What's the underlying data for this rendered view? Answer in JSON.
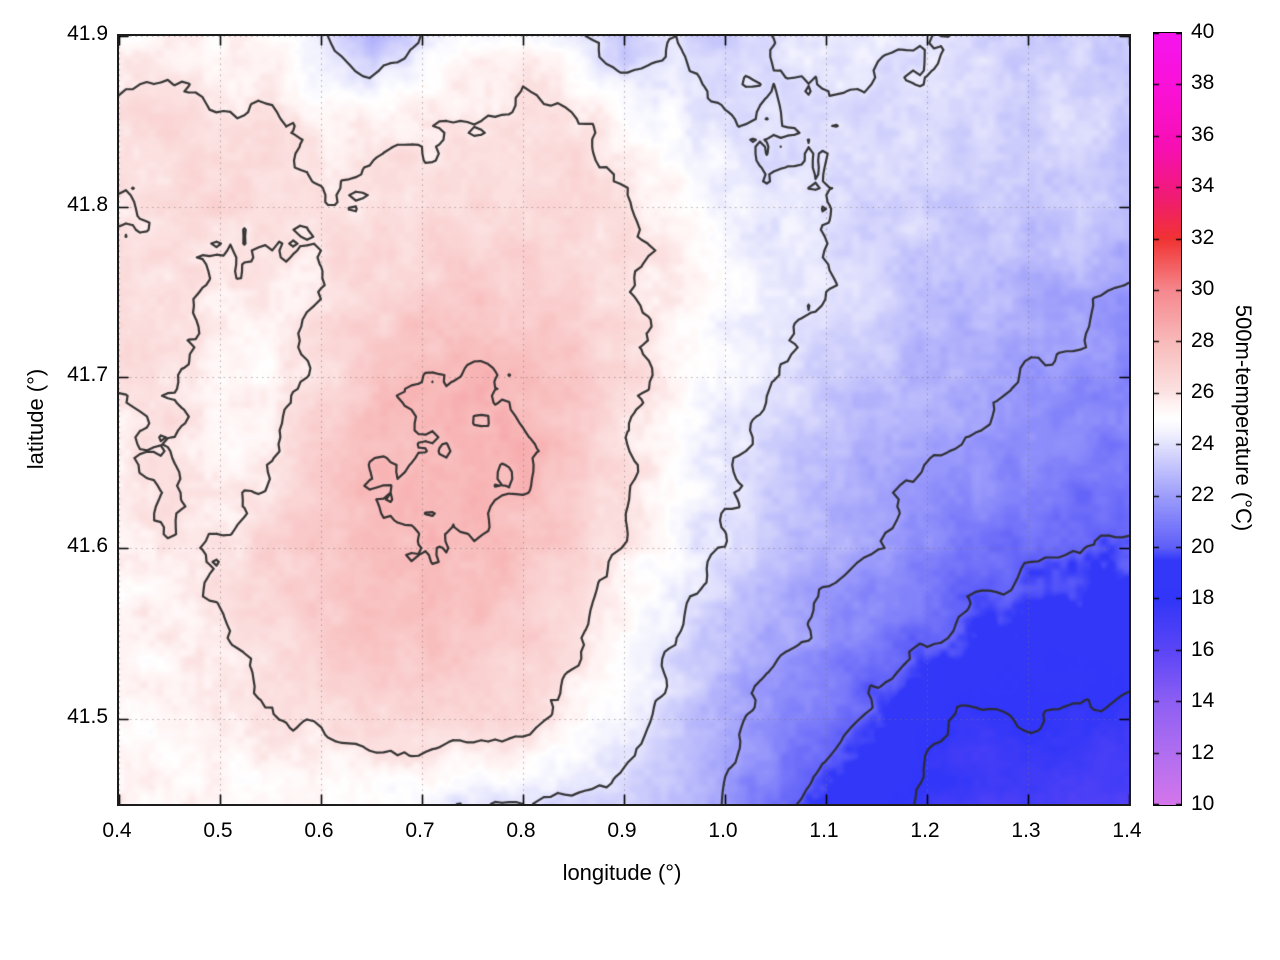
{
  "chart_data": {
    "type": "heatmap",
    "title": "",
    "xlabel": "longitude (°)",
    "ylabel": "latitude (°)",
    "colorbar_label": "500m-temperature (°C)",
    "x_range": [
      0.4,
      1.4
    ],
    "y_range": [
      41.45,
      41.9
    ],
    "grid_on": true,
    "legend": "colorbar-right",
    "x_ticks": {
      "values": [
        0.4,
        0.5,
        0.6,
        0.7,
        0.8,
        0.9,
        1.0,
        1.1,
        1.2,
        1.3,
        1.4
      ],
      "labels": [
        "0.4",
        "0.5",
        "0.6",
        "0.7",
        "0.8",
        "0.9",
        "1.0",
        "1.1",
        "1.2",
        "1.3",
        "1.4"
      ]
    },
    "y_ticks": {
      "values": [
        41.5,
        41.6,
        41.7,
        41.8,
        41.9
      ],
      "labels": [
        "41.5",
        "41.6",
        "41.7",
        "41.8",
        "41.9"
      ]
    },
    "colorbar_range": [
      10,
      40
    ],
    "cb_ticks": {
      "values": [
        10,
        12,
        14,
        16,
        18,
        20,
        22,
        24,
        26,
        28,
        30,
        32,
        34,
        36,
        38,
        40
      ],
      "labels": [
        "10",
        "12",
        "14",
        "16",
        "18",
        "20",
        "22",
        "24",
        "26",
        "28",
        "30",
        "32",
        "34",
        "36",
        "38",
        "40"
      ]
    },
    "contour_levels": [
      18,
      20,
      22,
      24,
      26,
      28
    ],
    "contour_color": "#2b2b2b",
    "grid_line_color": "rgba(130,115,115,0.55)",
    "palette": [
      {
        "v": 10,
        "color": "#d376ea"
      },
      {
        "v": 12,
        "color": "#b16ef0"
      },
      {
        "v": 14,
        "color": "#8d5ff3"
      },
      {
        "v": 16,
        "color": "#5b45f6"
      },
      {
        "v": 18,
        "color": "#3136f8"
      },
      {
        "v": 19.5,
        "color": "#3338f8"
      },
      {
        "v": 20,
        "color": "#5f5ff9"
      },
      {
        "v": 22,
        "color": "#9d9dfb"
      },
      {
        "v": 23.2,
        "color": "#c6c6fc"
      },
      {
        "v": 24.5,
        "color": "#f3f3fe"
      },
      {
        "v": 25.0,
        "color": "#ffffff"
      },
      {
        "v": 25.6,
        "color": "#fff2f2"
      },
      {
        "v": 26,
        "color": "#fce3e3"
      },
      {
        "v": 28,
        "color": "#f8baba"
      },
      {
        "v": 30,
        "color": "#f5888e"
      },
      {
        "v": 32,
        "color": "#f13333"
      },
      {
        "v": 33.6,
        "color": "#f01c72"
      },
      {
        "v": 35.5,
        "color": "#f70fb2"
      },
      {
        "v": 38,
        "color": "#fa11d9"
      },
      {
        "v": 40,
        "color": "#f515ee"
      }
    ],
    "grid": {
      "lon": [
        0.4,
        0.45,
        0.5,
        0.55,
        0.6,
        0.65,
        0.7,
        0.75,
        0.8,
        0.85,
        0.9,
        0.95,
        1.0,
        1.05,
        1.1,
        1.15,
        1.2,
        1.25,
        1.3,
        1.35,
        1.4
      ],
      "lat_top_to_bottom": [
        41.9,
        41.85,
        41.8,
        41.75,
        41.7,
        41.65,
        41.6,
        41.55,
        41.5,
        41.45
      ],
      "values_c": [
        [
          25.3,
          25.5,
          25.4,
          25.2,
          24.2,
          22.4,
          24.0,
          25.0,
          25.2,
          24.4,
          23.0,
          23.9,
          23.4,
          24.2,
          24.3,
          24.2,
          24.0,
          23.8,
          23.4,
          23.6,
          23.2
        ],
        [
          26.3,
          26.4,
          26.2,
          26.1,
          25.4,
          25.6,
          26.0,
          26.1,
          26.2,
          26.3,
          25.2,
          24.6,
          24.2,
          24.0,
          23.9,
          23.8,
          23.7,
          23.6,
          23.5,
          23.7,
          23.2
        ],
        [
          25.8,
          26.3,
          26.4,
          26.3,
          26.1,
          26.2,
          26.3,
          26.4,
          26.5,
          26.5,
          26.2,
          25.4,
          24.6,
          24.2,
          24.0,
          23.8,
          23.6,
          23.4,
          23.2,
          23.4,
          22.8
        ],
        [
          26.2,
          26.3,
          25.8,
          25.6,
          26.1,
          26.5,
          26.9,
          27.1,
          27.0,
          26.7,
          26.2,
          25.6,
          24.8,
          24.3,
          24.0,
          23.6,
          23.1,
          22.7,
          22.6,
          22.4,
          21.8
        ],
        [
          26.0,
          26.2,
          25.4,
          25.2,
          26.4,
          27.4,
          28.0,
          28.1,
          27.9,
          27.3,
          26.4,
          25.4,
          24.6,
          24.0,
          23.4,
          22.9,
          22.6,
          22.4,
          22.0,
          21.6,
          21.2
        ],
        [
          25.8,
          26.0,
          25.3,
          26.0,
          27.2,
          28.0,
          28.2,
          28.2,
          28.0,
          27.3,
          26.2,
          25.0,
          24.2,
          23.6,
          23.0,
          22.5,
          22.1,
          21.8,
          21.3,
          21.0,
          20.8
        ],
        [
          25.6,
          25.9,
          26.1,
          26.8,
          27.4,
          27.9,
          28.1,
          28.0,
          27.6,
          26.9,
          25.8,
          24.6,
          23.8,
          23.2,
          22.6,
          22.0,
          21.4,
          20.8,
          20.3,
          20.0,
          19.8
        ],
        [
          25.2,
          25.6,
          25.9,
          26.5,
          27.0,
          27.4,
          27.6,
          27.5,
          27.0,
          26.2,
          25.2,
          24.0,
          23.2,
          22.4,
          21.6,
          20.8,
          20.2,
          19.5,
          19.1,
          18.9,
          18.7
        ],
        [
          25.2,
          25.4,
          25.5,
          25.8,
          26.2,
          26.6,
          26.8,
          26.7,
          26.4,
          25.6,
          24.6,
          23.5,
          22.4,
          21.4,
          20.6,
          19.6,
          18.4,
          17.7,
          18.1,
          17.9,
          17.6
        ],
        [
          25.4,
          25.4,
          25.3,
          25.2,
          25.0,
          24.8,
          24.5,
          24.1,
          23.9,
          23.9,
          23.6,
          22.9,
          21.8,
          20.6,
          19.4,
          18.4,
          17.6,
          17.0,
          16.8,
          16.6,
          16.4
        ]
      ]
    }
  }
}
